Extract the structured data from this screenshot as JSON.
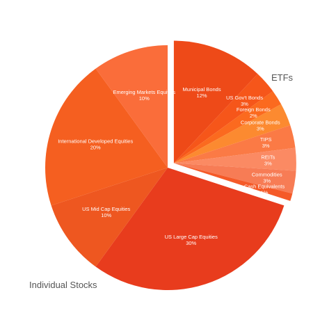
{
  "chart_data": {
    "type": "pie",
    "title": "",
    "groups": [
      {
        "name": "ETFs",
        "exploded": true,
        "slices": [
          {
            "label": "Municipal Bonds",
            "pct_text": "12%",
            "value": 12,
            "color": "#ee4a18"
          },
          {
            "label": "US Gov't Bonds",
            "pct_text": "3%",
            "value": 3,
            "color": "#f6561a"
          },
          {
            "label": "Foreign Bonds",
            "pct_text": "2%",
            "value": 2,
            "color": "#fb6a1f"
          },
          {
            "label": "Corporate Bonds",
            "pct_text": "3%",
            "value": 3,
            "color": "#fc8a30"
          },
          {
            "label": "TIPS",
            "pct_text": "3%",
            "value": 3,
            "color": "#fb7a45"
          },
          {
            "label": "REITs",
            "pct_text": "3%",
            "value": 3,
            "color": "#fb8a63"
          },
          {
            "label": "Commodities",
            "pct_text": "3%",
            "value": 3,
            "color": "#f77c55"
          },
          {
            "label": "Cash Equivalents",
            "pct_text": "1%",
            "value": 1,
            "color": "#f55a28"
          }
        ]
      },
      {
        "name": "Individual Stocks",
        "exploded": false,
        "slices": [
          {
            "label": "US Large Cap Equities",
            "pct_text": "30%",
            "value": 30,
            "color": "#e83c1d"
          },
          {
            "label": "US Mid Cap Equities",
            "pct_text": "10%",
            "value": 10,
            "color": "#ee5720"
          },
          {
            "label": "International Developed Equities",
            "pct_text": "20%",
            "value": 20,
            "color": "#f55f20"
          },
          {
            "label": "Emerging Markets Equities",
            "pct_text": "10%",
            "value": 10,
            "color": "#fa6d3a"
          }
        ]
      }
    ]
  }
}
